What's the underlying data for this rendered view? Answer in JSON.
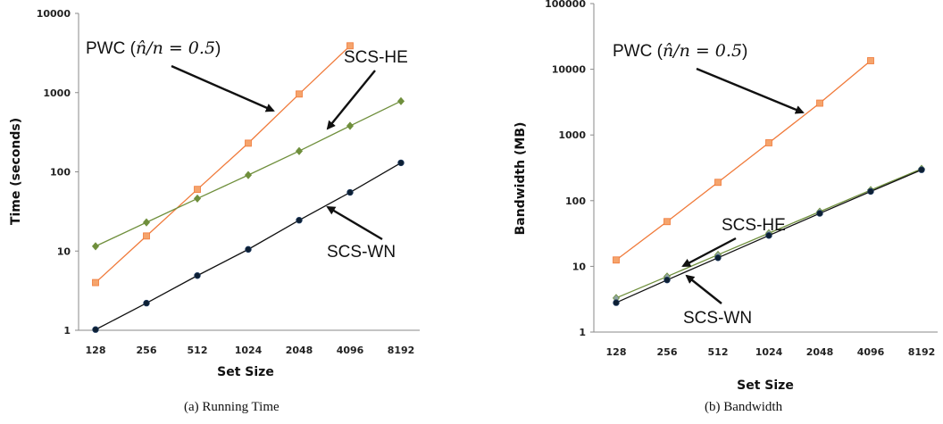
{
  "chart_data": [
    {
      "type": "line",
      "panel": "a",
      "caption": "(a)  Running Time",
      "xlabel": "Set Size",
      "ylabel": "Time (seconds)",
      "y_scale": "log",
      "ylim": [
        1,
        10000
      ],
      "categories": [
        "128",
        "256",
        "512",
        "1024",
        "2048",
        "4096",
        "8192"
      ],
      "y_ticks": [
        "1",
        "10",
        "100",
        "1000",
        "10000"
      ],
      "series": [
        {
          "name": "PWC",
          "color": "#f07a3a",
          "fill": "#f5a46c",
          "marker": "square",
          "values": [
            4.0,
            15.5,
            60,
            230,
            960,
            3900,
            null
          ]
        },
        {
          "name": "SCS-HE",
          "color": "#6f8f3c",
          "fill": "#6f8f3c",
          "marker": "diamond",
          "values": [
            11.5,
            23,
            46,
            91,
            183,
            380,
            780
          ]
        },
        {
          "name": "SCS-WN",
          "color": "#111111",
          "fill": "#0d1f33",
          "marker": "circle",
          "values": [
            1.02,
            2.2,
            4.9,
            10.5,
            24.5,
            55,
            130
          ]
        }
      ],
      "annotations": [
        {
          "label_pre": "PWC (",
          "label_math": "n̂/n = 0.5",
          "label_post": ")",
          "target": "PWC"
        },
        {
          "label": "SCS-HE",
          "target": "SCS-HE"
        },
        {
          "label": "SCS-WN",
          "target": "SCS-WN"
        }
      ]
    },
    {
      "type": "line",
      "panel": "b",
      "caption": "(b)  Bandwidth",
      "xlabel": "Set Size",
      "ylabel": "Bandwidth (MB)",
      "y_scale": "log",
      "ylim": [
        1,
        100000
      ],
      "categories": [
        "128",
        "256",
        "512",
        "1024",
        "2048",
        "4096",
        "8192"
      ],
      "y_ticks": [
        "1",
        "10",
        "100",
        "1000",
        "10000",
        "100000"
      ],
      "series": [
        {
          "name": "PWC",
          "color": "#f07a3a",
          "fill": "#f5a46c",
          "marker": "square",
          "values": [
            12.5,
            48,
            190,
            760,
            3050,
            13500,
            null
          ]
        },
        {
          "name": "SCS-HE",
          "color": "#6f8f3c",
          "fill": "#8fa3a3",
          "marker": "diamond",
          "values": [
            3.3,
            7.0,
            15.0,
            32,
            68,
            145,
            305
          ]
        },
        {
          "name": "SCS-WN",
          "color": "#111111",
          "fill": "#0d1f33",
          "marker": "circle",
          "values": [
            2.8,
            6.2,
            13.5,
            29.5,
            64,
            138,
            295
          ]
        }
      ],
      "annotations": [
        {
          "label_pre": "PWC (",
          "label_math": "n̂/n = 0.5",
          "label_post": ")",
          "target": "PWC"
        },
        {
          "label": "SCS-HE",
          "target": "SCS-HE"
        },
        {
          "label": "SCS-WN",
          "target": "SCS-WN"
        }
      ]
    }
  ]
}
